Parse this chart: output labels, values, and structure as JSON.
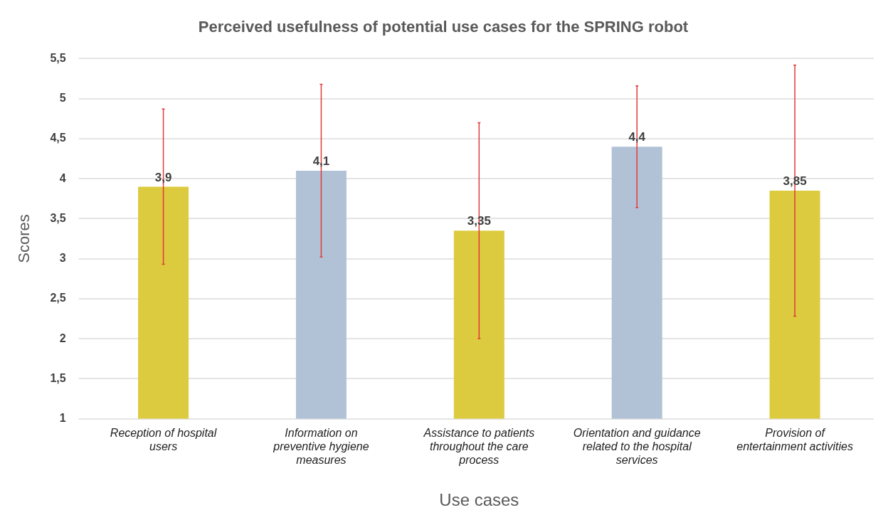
{
  "chart_data": {
    "type": "bar",
    "title": "Perceived usefulness of potential use cases for the SPRING robot",
    "xlabel": "Use cases",
    "ylabel": "Scores",
    "categories": [
      "Reception of hospital users",
      "Information on preventive hygiene measures",
      "Assistance to patients throughout the care process",
      "Orientation and guidance related to the hospital services",
      "Provision of entertainment activities"
    ],
    "values": [
      3.9,
      4.1,
      3.35,
      4.4,
      3.85
    ],
    "colors": [
      "#dccb3e",
      "#b1c2d7",
      "#dccb3e",
      "#b1c2d7",
      "#dccb3e"
    ],
    "errors": [
      0.97,
      1.08,
      1.35,
      0.76,
      1.57
    ],
    "value_labels": [
      "3,9",
      "4,1",
      "3,35",
      "4,4",
      "3,85"
    ],
    "ylim": [
      1,
      5.5
    ],
    "yticks": [
      {
        "value": 1,
        "label": "1"
      },
      {
        "value": 1.5,
        "label": "1,5"
      },
      {
        "value": 2,
        "label": "2"
      },
      {
        "value": 2.5,
        "label": "2,5"
      },
      {
        "value": 3,
        "label": "3"
      },
      {
        "value": 3.5,
        "label": "3,5"
      },
      {
        "value": 4,
        "label": "4"
      },
      {
        "value": 4.5,
        "label": "4,5"
      },
      {
        "value": 5,
        "label": "5"
      },
      {
        "value": 5.5,
        "label": "5,5"
      }
    ],
    "grid": "y",
    "legend": false
  }
}
